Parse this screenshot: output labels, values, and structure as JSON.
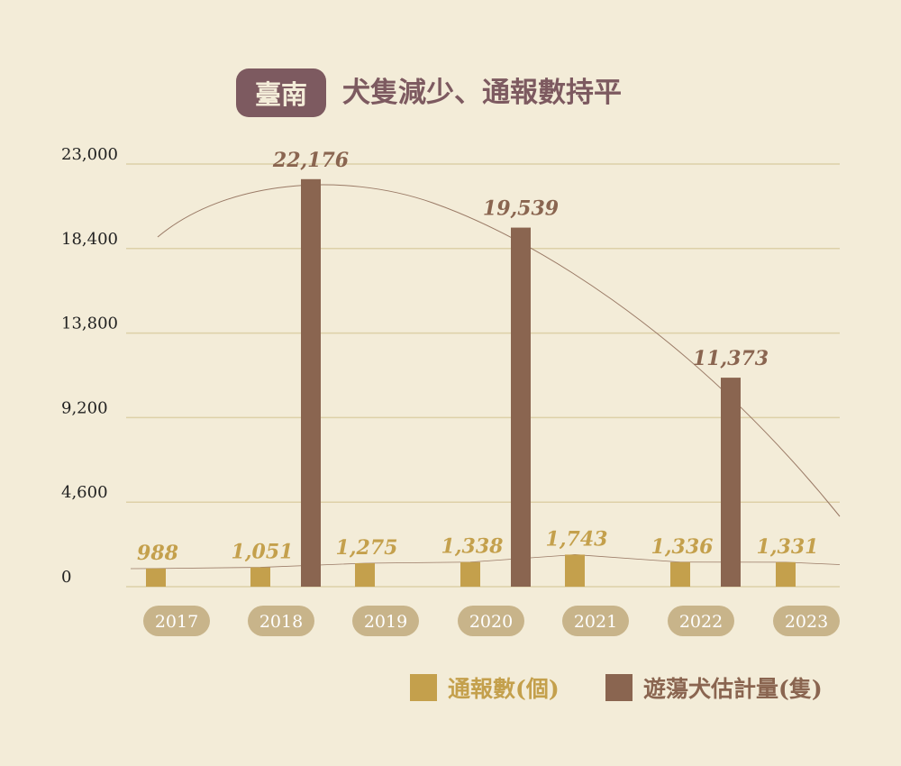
{
  "title": {
    "badge": "臺南",
    "text": "犬隻減少、通報數持平"
  },
  "colors": {
    "reports": "#c4a04c",
    "estimate": "#8a6550",
    "grid": "#ddd0a8",
    "axis_text": "#222222",
    "year_pill": "#c8b48a",
    "title": "#7d5a60",
    "curve": "#9a7a66",
    "background": "#f3ecd8"
  },
  "legend": [
    {
      "label": "通報數(個)",
      "color": "#c4a04c"
    },
    {
      "label": "遊蕩犬估計量(隻)",
      "color": "#8a6550"
    }
  ],
  "chart_data": {
    "type": "bar",
    "categories": [
      "2017",
      "2018",
      "2019",
      "2020",
      "2021",
      "2022",
      "2023"
    ],
    "series": [
      {
        "name": "通報數(個)",
        "values": [
          988,
          1051,
          1275,
          1338,
          1743,
          1336,
          1331
        ],
        "labels": [
          "988",
          "1,051",
          "1,275",
          "1,338",
          "1,743",
          "1,336",
          "1,331"
        ]
      },
      {
        "name": "遊蕩犬估計量(隻)",
        "values": [
          null,
          22176,
          null,
          19539,
          null,
          11373,
          null
        ],
        "labels": [
          "",
          "22,176",
          "",
          "19,539",
          "",
          "11,373",
          ""
        ]
      }
    ],
    "yticks": [
      0,
      4600,
      9200,
      13800,
      18400,
      23000
    ],
    "ytick_labels": [
      "0",
      "4,600",
      "9,200",
      "13,800",
      "18,400",
      "23,000"
    ],
    "ylim": [
      0,
      23000
    ],
    "grid": true,
    "legend_position": "bottom-right",
    "trend_lines": true
  }
}
